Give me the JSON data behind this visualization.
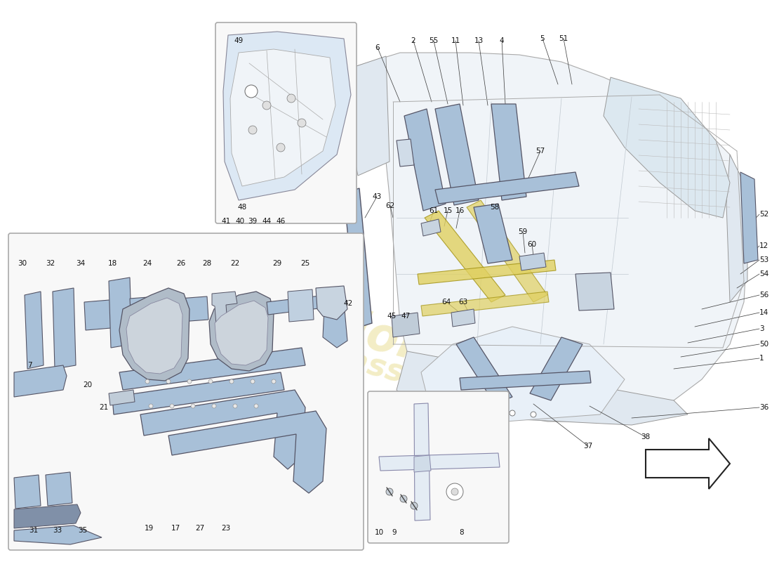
{
  "bg_color": "#ffffff",
  "fig_width": 11.0,
  "fig_height": 8.0,
  "dpi": 100,
  "blue_light": "#c8d8e8",
  "blue_mid": "#a8c0d8",
  "blue_dark": "#8090a8",
  "yellow_hl": "#e0d060",
  "edge_dark": "#555566",
  "edge_mid": "#778899",
  "label_color": "#111111",
  "line_color": "#333333",
  "watermark_color": "#d4c030",
  "watermark_alpha": 0.28,
  "fs": 7.5
}
